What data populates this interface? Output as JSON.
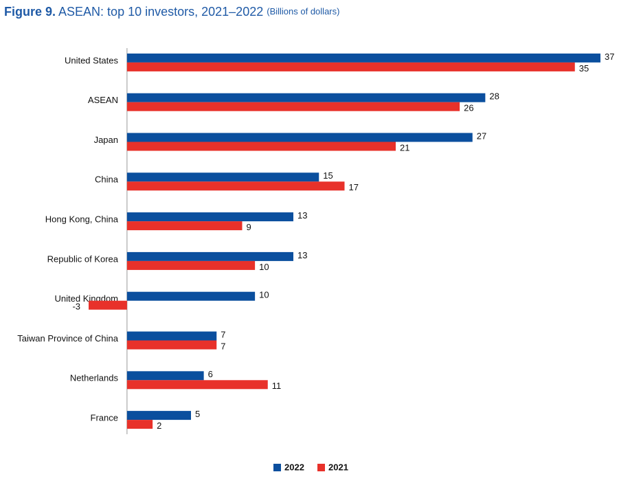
{
  "chart_data": {
    "type": "hbar",
    "figure_label": "Figure 9.",
    "title": "ASEAN: top 10 investors, 2021–2022",
    "subtitle": "(Billions of dollars)",
    "categories": [
      "United States",
      "ASEAN",
      "Japan",
      "China",
      "Hong Kong, China",
      "Republic of Korea",
      "United Kingdom",
      "Taiwan Province of China",
      "Netherlands",
      "France"
    ],
    "series": [
      {
        "name": "2022",
        "color": "#0b4f9e",
        "values": [
          37,
          28,
          27,
          15,
          13,
          13,
          10,
          7,
          6,
          5
        ]
      },
      {
        "name": "2021",
        "color": "#e8312a",
        "values": [
          35,
          26,
          21,
          17,
          9,
          10,
          -3,
          7,
          11,
          2
        ]
      }
    ],
    "legend": "bottom"
  }
}
